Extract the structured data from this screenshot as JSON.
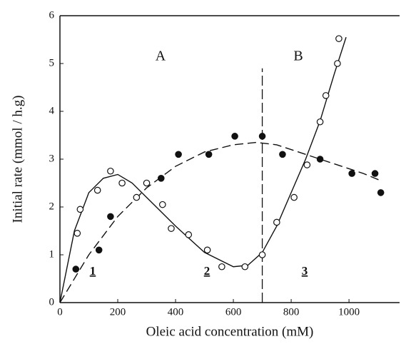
{
  "chart_data": {
    "type": "scatter",
    "x_label": "Oleic acid concentration (mM)",
    "y_label": "Initial rate (mmol / h.g)",
    "xlim": [
      0,
      1175
    ],
    "ylim": [
      0,
      6
    ],
    "xticks": [
      0,
      200,
      400,
      600,
      800,
      1000
    ],
    "yticks": [
      0,
      1,
      2,
      3,
      4,
      5,
      6
    ],
    "color": "#111111",
    "vline": 700,
    "annotations": [
      "A",
      "B",
      "1",
      "2",
      "3"
    ],
    "series": [
      {
        "marker": "open",
        "x": [
          60,
          70,
          130,
          175,
          215,
          265,
          300,
          355,
          385,
          445,
          510,
          560,
          640,
          700,
          750,
          810,
          855,
          900,
          920,
          960,
          965
        ],
        "values": [
          1.45,
          1.95,
          2.35,
          2.75,
          2.5,
          2.2,
          2.5,
          2.05,
          1.55,
          1.42,
          1.1,
          0.75,
          0.75,
          1.0,
          1.68,
          2.2,
          2.88,
          3.78,
          4.33,
          5.0,
          5.52
        ]
      },
      {
        "marker": "filled",
        "x": [
          55,
          135,
          175,
          350,
          410,
          515,
          605,
          700,
          770,
          900,
          1010,
          1090,
          1110
        ],
        "values": [
          0.7,
          1.1,
          1.8,
          2.6,
          3.1,
          3.1,
          3.48,
          3.48,
          3.1,
          3.0,
          2.7,
          2.7,
          2.3
        ]
      },
      {
        "line": "solid",
        "x": [
          0,
          50,
          100,
          150,
          200,
          250,
          300,
          400,
          500,
          600,
          650,
          700,
          750,
          800,
          850,
          900,
          950,
          990
        ],
        "values": [
          0,
          1.5,
          2.3,
          2.6,
          2.68,
          2.5,
          2.2,
          1.6,
          1.05,
          0.75,
          0.78,
          1.05,
          1.6,
          2.3,
          3.0,
          3.8,
          4.8,
          5.55
        ]
      },
      {
        "line": "dashed",
        "x": [
          0,
          100,
          200,
          300,
          400,
          500,
          600,
          680,
          750,
          850,
          950,
          1050,
          1110
        ],
        "values": [
          0,
          1.0,
          1.8,
          2.4,
          2.85,
          3.15,
          3.3,
          3.35,
          3.3,
          3.1,
          2.9,
          2.7,
          2.55
        ]
      }
    ]
  }
}
